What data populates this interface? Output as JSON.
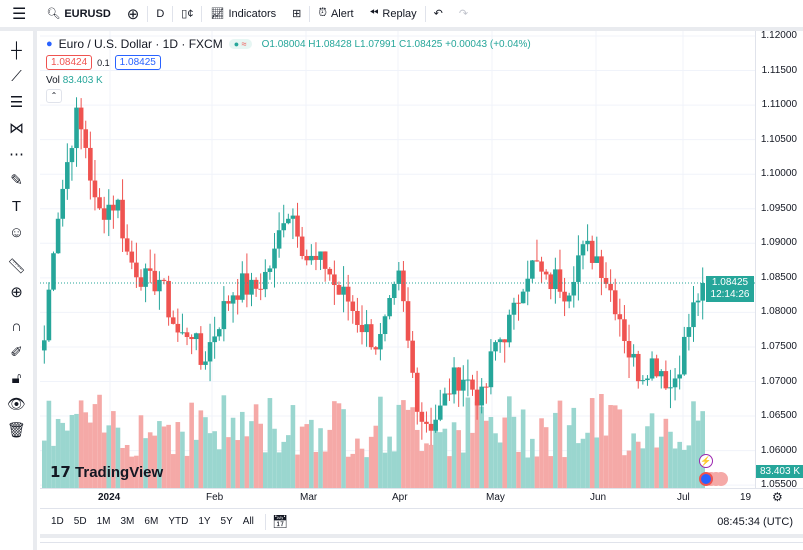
{
  "toolbar": {
    "symbol": "EURUSD",
    "interval": "D",
    "indicators": "Indicators",
    "alert": "Alert",
    "replay": "Replay"
  },
  "legend": {
    "title": "Euro / U.S. Dollar · 1D · FXCM",
    "open": "O1.08004",
    "high": "H1.08428",
    "low": "L1.07991",
    "close": "C1.08425",
    "change": "+0.00043 (+0.04%)",
    "bid": "1.08424",
    "spread": "0.1",
    "ask": "1.08425",
    "vol_label": "Vol",
    "vol_value": "83.403 K"
  },
  "price_axis": {
    "labels": [
      "1.12000",
      "1.11500",
      "1.11000",
      "1.10500",
      "1.10000",
      "1.09500",
      "1.09000",
      "1.08500",
      "1.08000",
      "1.07500",
      "1.07000",
      "1.06500",
      "1.06000",
      "1.05500"
    ],
    "last_price": "1.08425",
    "countdown": "12:14:26",
    "volume_badge": "83.403 K"
  },
  "time_axis": {
    "labels": [
      "2024",
      "Feb",
      "Mar",
      "Apr",
      "May",
      "Jun",
      "Jul",
      "19"
    ]
  },
  "bottom": {
    "ranges": [
      "1D",
      "5D",
      "1M",
      "3M",
      "6M",
      "YTD",
      "1Y",
      "5Y",
      "All"
    ],
    "clock": "08:45:34 (UTC)"
  },
  "watermark": "TradingView",
  "colors": {
    "up": "#26a69a",
    "down": "#ef5350",
    "up_vol": "#9ad6cf",
    "down_vol": "#f5a9a7"
  },
  "chart_data": {
    "type": "candlestick",
    "ylim": [
      1.055,
      1.12
    ],
    "anchors": [
      1.076,
      1.092,
      1.1,
      1.1085,
      1.104,
      1.094,
      1.0955,
      1.096,
      1.088,
      1.086,
      1.084,
      1.085,
      1.08,
      1.076,
      1.078,
      1.0725,
      1.076,
      1.08,
      1.083,
      1.084,
      1.083,
      1.085,
      1.088,
      1.095,
      1.094,
      1.088,
      1.087,
      1.087,
      1.083,
      1.082,
      1.079,
      1.077,
      1.075,
      1.08,
      1.085,
      1.073,
      1.065,
      1.064,
      1.066,
      1.07,
      1.071,
      1.069,
      1.067,
      1.075,
      1.077,
      1.08,
      1.086,
      1.087,
      1.084,
      1.085,
      1.083,
      1.088,
      1.089,
      1.088,
      1.084,
      1.08,
      1.074,
      1.071,
      1.073,
      1.072,
      1.069,
      1.074,
      1.08,
      1.0842
    ]
  }
}
